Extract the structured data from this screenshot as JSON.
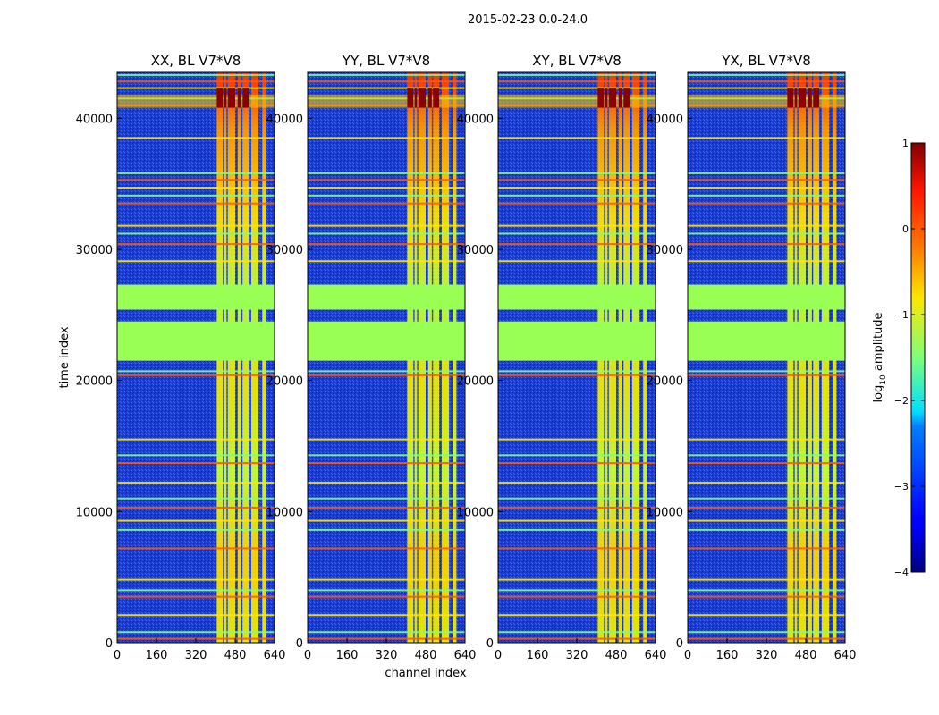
{
  "figure": {
    "suptitle": "2015-02-23 0.0-24.0"
  },
  "chart_data": {
    "type": "heatmap",
    "shared_ylabel": "time index",
    "shared_xlabel": "channel index",
    "xlim": [
      0,
      640
    ],
    "ylim": [
      0,
      43500
    ],
    "xticks": [
      0,
      160,
      320,
      480,
      640
    ],
    "yticks": [
      0,
      10000,
      20000,
      30000,
      40000
    ],
    "panels": [
      {
        "title": "XX, BL V7*V8",
        "polarization": "XX"
      },
      {
        "title": "YY, BL V7*V8",
        "polarization": "YY"
      },
      {
        "title": "XY, BL V7*V8",
        "polarization": "XY"
      },
      {
        "title": "YX, BL V7*V8",
        "polarization": "YX"
      }
    ],
    "flagged_time_ranges": [
      [
        21500,
        24500
      ],
      [
        25400,
        27300
      ]
    ],
    "bright_channel_ranges": [
      [
        405,
        430
      ],
      [
        435,
        445
      ],
      [
        450,
        480
      ],
      [
        490,
        505
      ],
      [
        510,
        535
      ],
      [
        545,
        575
      ],
      [
        590,
        605
      ]
    ],
    "horizontal_rfi_times": [
      300,
      800,
      2100,
      3500,
      4000,
      4800,
      7200,
      8600,
      9300,
      10300,
      11000,
      12200,
      13700,
      14300,
      15500,
      20400,
      20700,
      29100,
      30400,
      31200,
      31800,
      33500,
      34100,
      34700,
      35300,
      35800,
      38500,
      41000,
      41500,
      42300,
      42800,
      43300
    ],
    "colorbar": {
      "label": "log10 amplitude",
      "label_prefix": "log",
      "label_sub": "10",
      "label_suffix": " amplitude",
      "min": -4,
      "max": 1,
      "ticks": [
        {
          "value": 1,
          "label": "1"
        },
        {
          "value": 0,
          "label": "0"
        },
        {
          "value": -1,
          "label": "−1"
        },
        {
          "value": -2,
          "label": "−2"
        },
        {
          "value": -3,
          "label": "−3"
        },
        {
          "value": -4,
          "label": "−4"
        }
      ]
    }
  }
}
